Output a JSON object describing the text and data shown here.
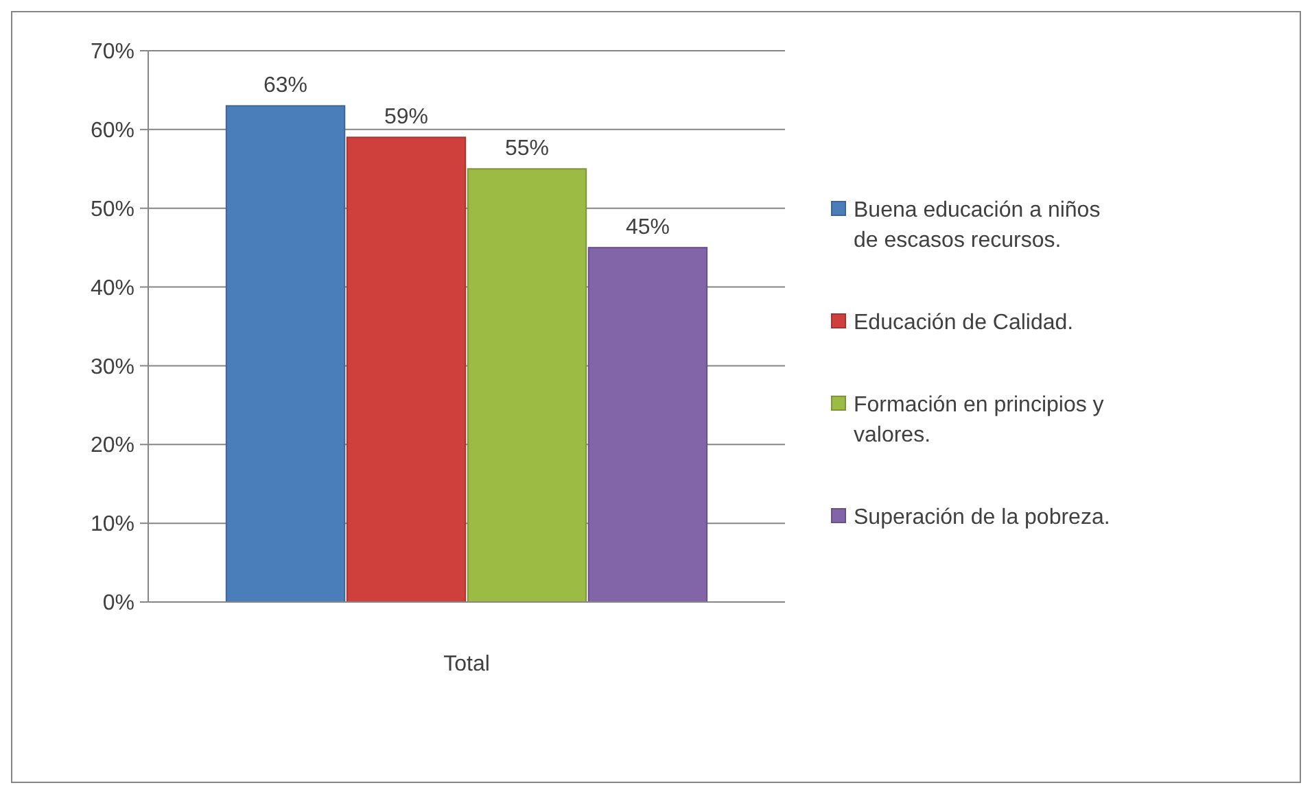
{
  "chart_data": {
    "type": "bar",
    "categories": [
      "Total"
    ],
    "series": [
      {
        "name": "Buena educación a niños de escasos recursos.",
        "color": "#4a7ebb",
        "values": [
          63
        ],
        "value_labels": [
          "63%"
        ]
      },
      {
        "name": "Educación de Calidad.",
        "color": "#cf403c",
        "values": [
          59
        ],
        "value_labels": [
          "59%"
        ]
      },
      {
        "name": "Formación en principios y valores.",
        "color": "#9bbb45",
        "values": [
          55
        ],
        "value_labels": [
          "55%"
        ]
      },
      {
        "name": "Superación de la pobreza.",
        "color": "#8264a8",
        "values": [
          45
        ],
        "value_labels": [
          "45%"
        ]
      }
    ],
    "ylim": [
      0,
      70
    ],
    "yticks": [
      {
        "value": 0,
        "label": "0%"
      },
      {
        "value": 10,
        "label": "10%"
      },
      {
        "value": 20,
        "label": "20%"
      },
      {
        "value": 30,
        "label": "30%"
      },
      {
        "value": 40,
        "label": "40%"
      },
      {
        "value": 50,
        "label": "50%"
      },
      {
        "value": 60,
        "label": "60%"
      },
      {
        "value": 70,
        "label": "70%"
      }
    ],
    "grid": "y",
    "legend": "right"
  }
}
